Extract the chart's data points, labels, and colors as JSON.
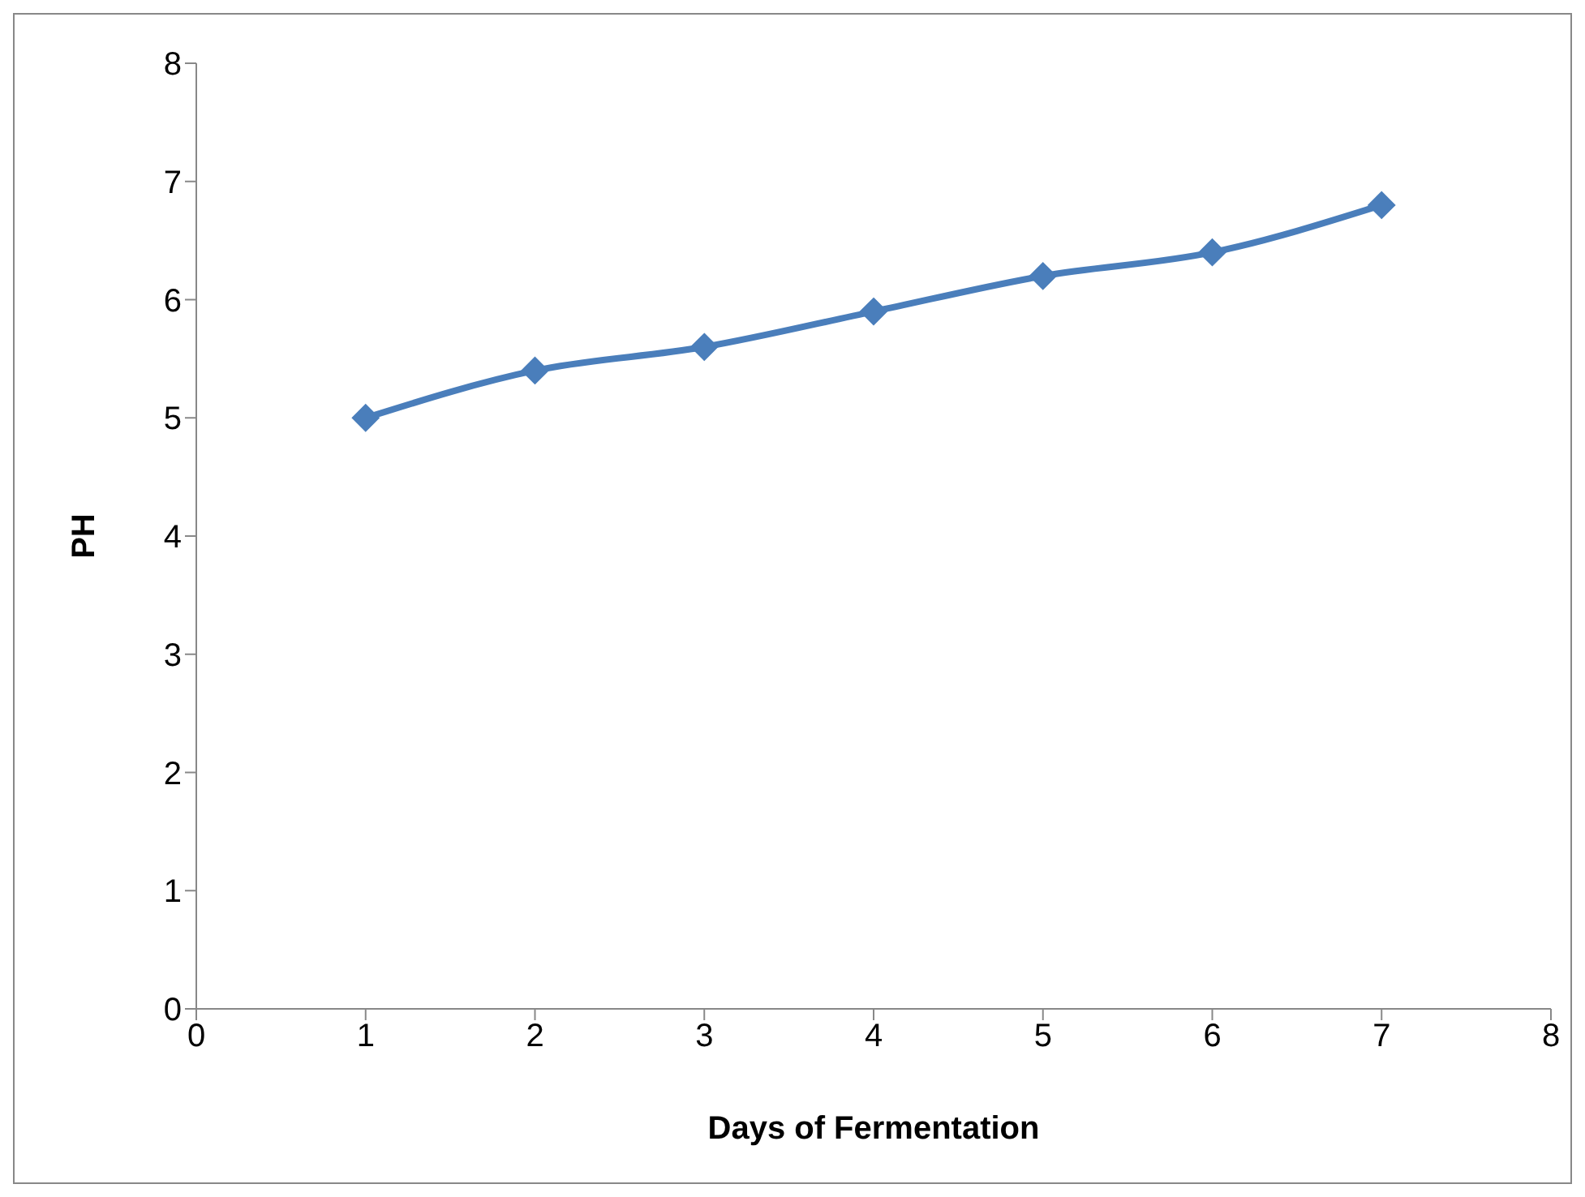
{
  "chart_data": {
    "type": "line",
    "xlabel": "Days of Fermentation",
    "ylabel": "PH",
    "x": [
      1,
      2,
      3,
      4,
      5,
      6,
      7
    ],
    "series": [
      {
        "color": "#4a7ebb",
        "values": [
          5.0,
          5.4,
          5.6,
          5.9,
          6.2,
          6.4,
          6.8
        ]
      }
    ],
    "xlim": [
      0,
      8
    ],
    "xticks": [
      0,
      1,
      2,
      3,
      4,
      5,
      6,
      7,
      8
    ],
    "ylim": [
      0,
      8
    ],
    "yticks": [
      0,
      1,
      2,
      3,
      4,
      5,
      6,
      7,
      8
    ],
    "grid": false,
    "legend": false,
    "marker": "diamond",
    "line_style": "solid"
  }
}
